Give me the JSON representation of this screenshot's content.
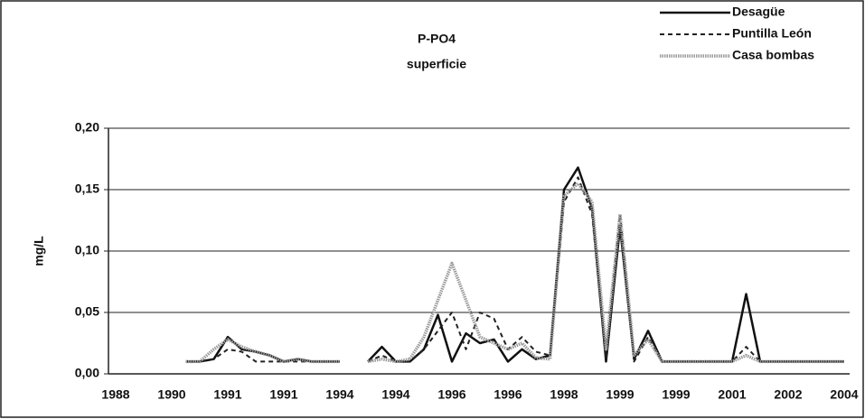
{
  "chart_data": {
    "type": "line",
    "title": "P-PO4",
    "subtitle": "superficie",
    "y_label": "mg/L",
    "categories": [
      "1988",
      null,
      null,
      null,
      "1990",
      null,
      null,
      null,
      "1991",
      null,
      null,
      null,
      "1991",
      null,
      null,
      null,
      "1994",
      null,
      null,
      null,
      "1994",
      null,
      null,
      null,
      "1996",
      null,
      null,
      null,
      "1996",
      null,
      null,
      null,
      "1998",
      null,
      null,
      null,
      "1999",
      null,
      null,
      null,
      "1999",
      null,
      null,
      null,
      "2001",
      null,
      null,
      null,
      "2002",
      null,
      null,
      null,
      "2004"
    ],
    "series": [
      {
        "name": "Desagüe",
        "color": "#111111",
        "style": "solid",
        "values": [
          null,
          null,
          null,
          null,
          null,
          0.01,
          0.01,
          0.012,
          0.03,
          0.02,
          0.018,
          0.015,
          0.01,
          0.012,
          0.01,
          0.01,
          0.01,
          null,
          0.01,
          0.022,
          0.01,
          0.01,
          0.02,
          0.048,
          0.01,
          0.033,
          0.025,
          0.028,
          0.01,
          0.02,
          0.012,
          0.015,
          0.15,
          0.168,
          0.135,
          0.01,
          0.12,
          0.012,
          0.035,
          0.01,
          0.01,
          0.01,
          0.01,
          0.01,
          0.01,
          0.065,
          0.01,
          0.01,
          0.01,
          0.01,
          0.01,
          0.01,
          0.01
        ]
      },
      {
        "name": "Puntilla León",
        "color": "#222222",
        "style": "dashed",
        "values": [
          null,
          null,
          null,
          null,
          null,
          0.01,
          0.01,
          0.012,
          0.02,
          0.018,
          0.01,
          0.01,
          0.01,
          0.01,
          0.01,
          0.01,
          0.01,
          null,
          0.01,
          0.015,
          0.01,
          0.01,
          0.02,
          0.035,
          0.05,
          0.02,
          0.05,
          0.045,
          0.02,
          0.03,
          0.018,
          0.015,
          0.14,
          0.16,
          0.13,
          0.012,
          0.13,
          0.01,
          0.03,
          0.01,
          0.01,
          0.01,
          0.01,
          0.01,
          0.01,
          0.022,
          0.01,
          0.01,
          0.01,
          0.01,
          0.01,
          0.01,
          0.01
        ]
      },
      {
        "name": "Casa bombas",
        "color": "#9a9a9a",
        "style": "dotted",
        "values": [
          null,
          null,
          null,
          null,
          null,
          0.01,
          0.01,
          0.02,
          0.028,
          0.022,
          0.018,
          0.015,
          0.01,
          0.012,
          0.01,
          0.01,
          0.01,
          null,
          0.01,
          0.012,
          0.01,
          0.012,
          0.03,
          0.06,
          0.09,
          0.06,
          0.03,
          0.025,
          0.02,
          0.025,
          0.013,
          0.012,
          0.145,
          0.155,
          0.14,
          0.02,
          0.13,
          0.015,
          0.028,
          0.01,
          0.01,
          0.01,
          0.01,
          0.01,
          0.01,
          0.015,
          0.01,
          0.01,
          0.01,
          0.01,
          0.01,
          0.01,
          0.01
        ]
      }
    ],
    "ylim": [
      0,
      0.2
    ],
    "yticks": [
      {
        "value": 0,
        "label": "0,00"
      },
      {
        "value": 0.05,
        "label": "0,05"
      },
      {
        "value": 0.1,
        "label": "0,10"
      },
      {
        "value": 0.15,
        "label": "0,15"
      },
      {
        "value": 0.2,
        "label": "0,20"
      }
    ],
    "grid": true,
    "legend": "top-right"
  }
}
